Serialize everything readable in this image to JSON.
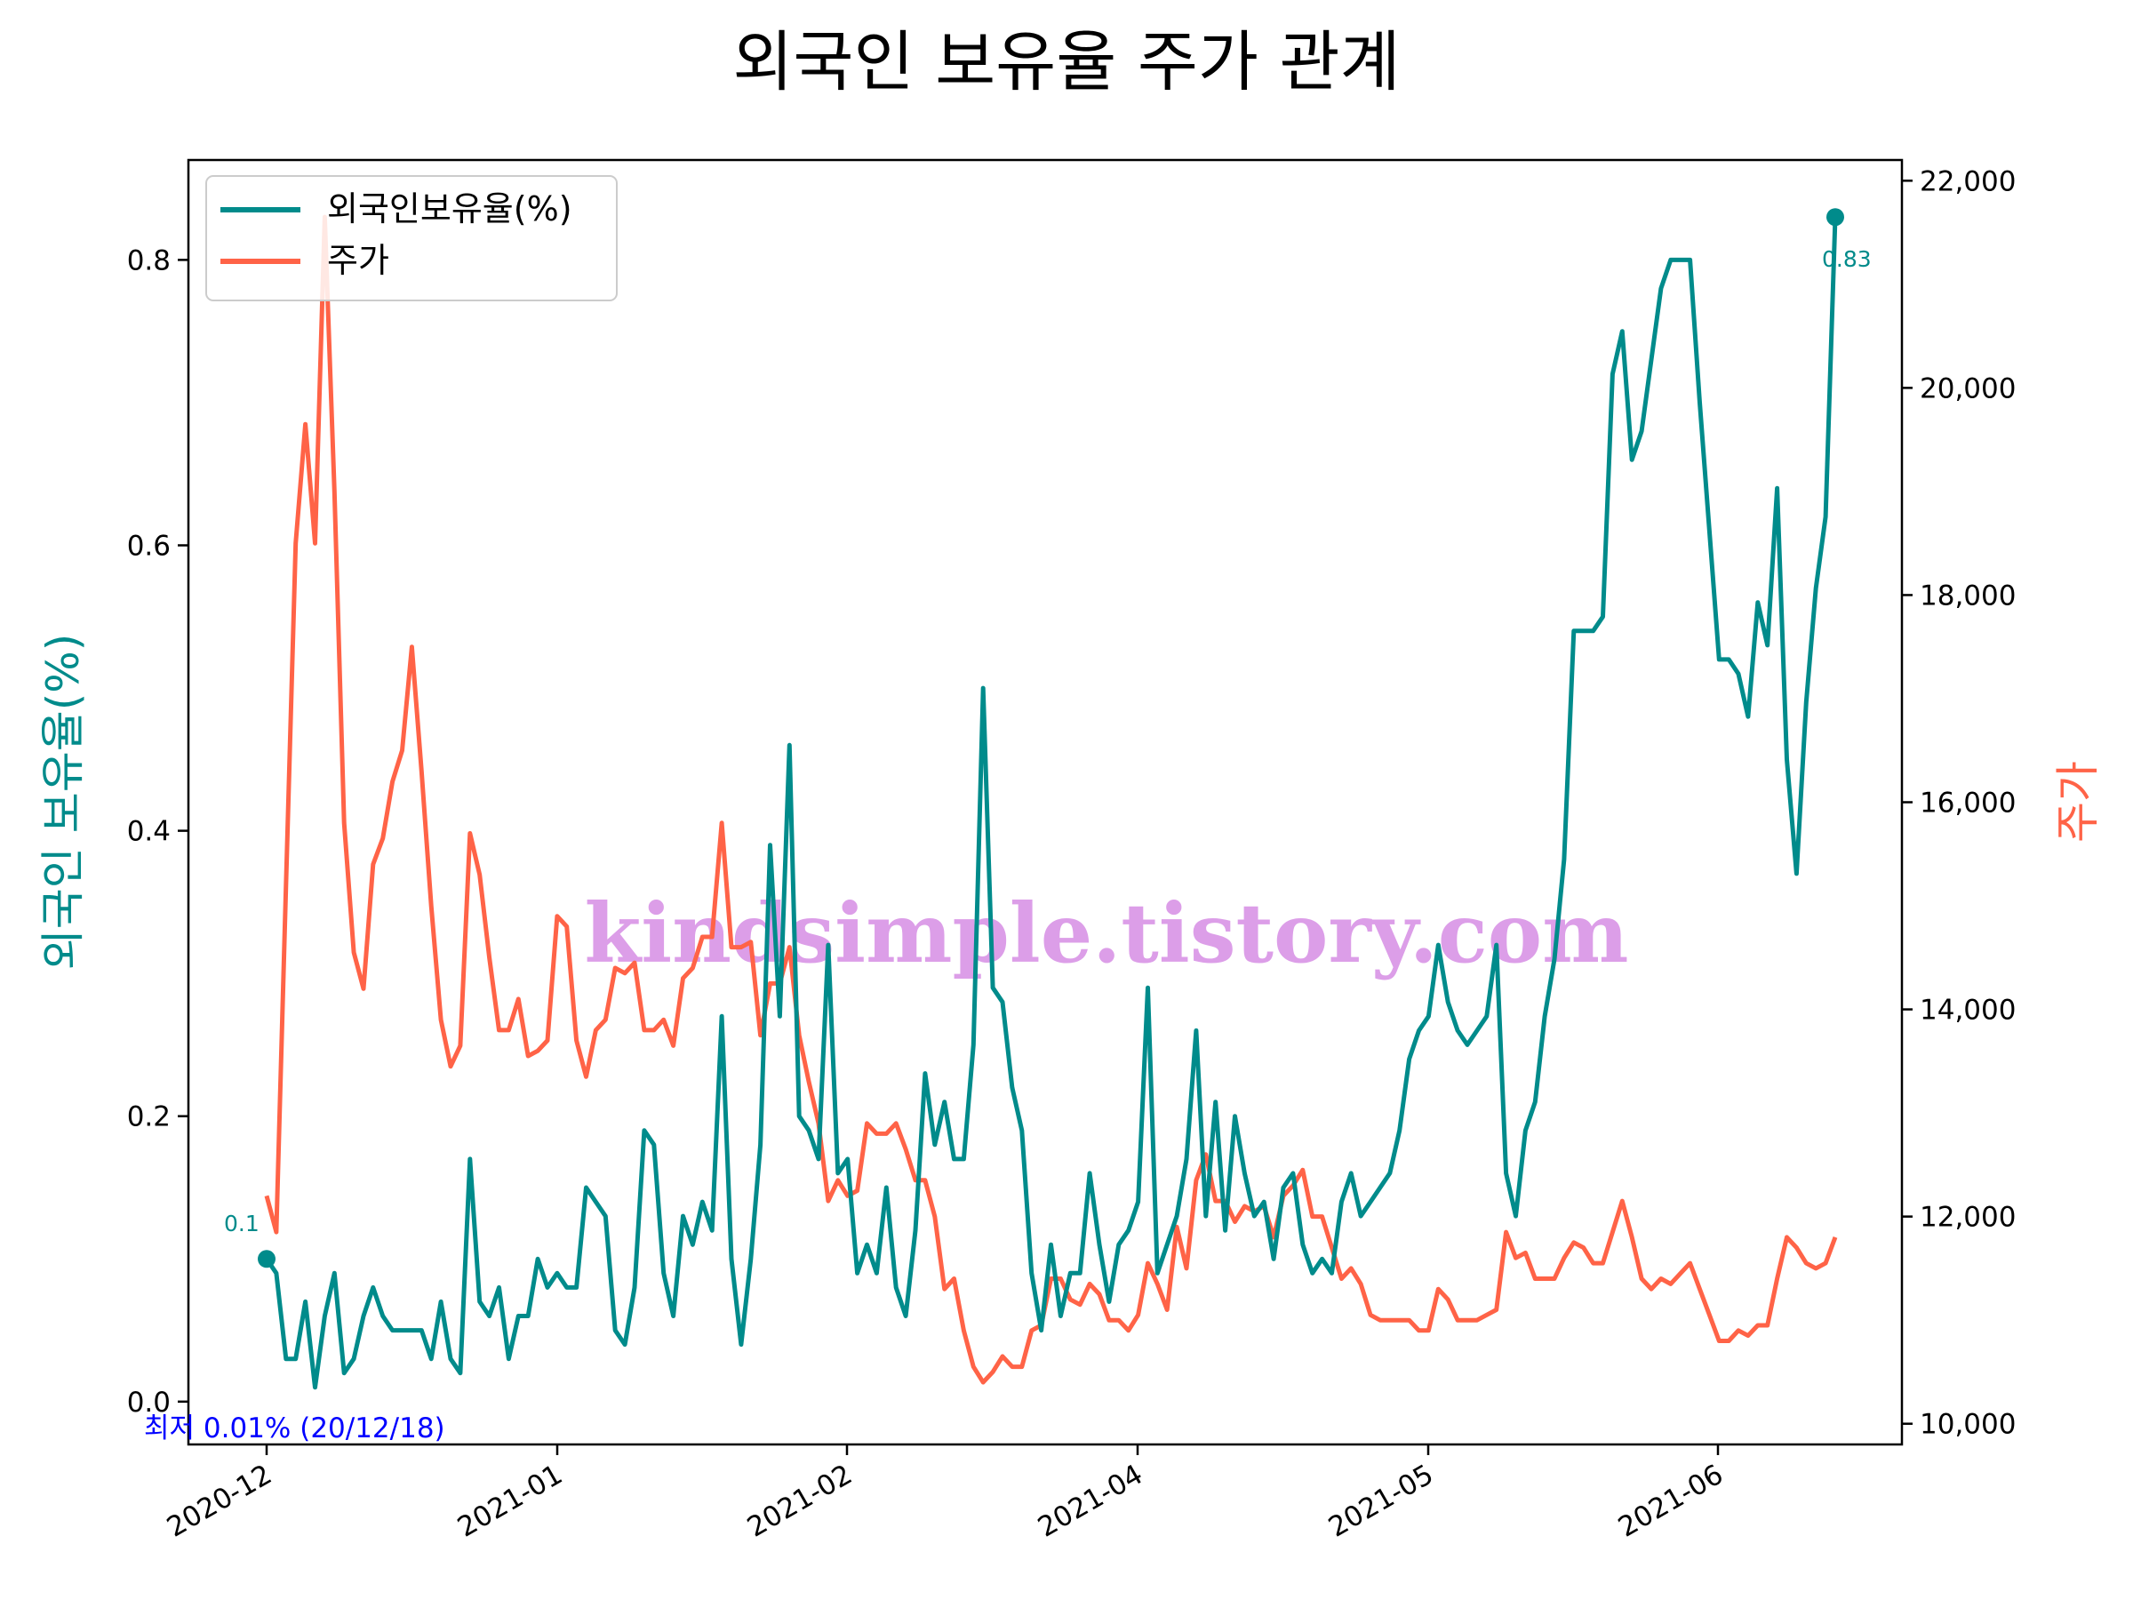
{
  "chart_data": {
    "type": "line",
    "title": "외국인 보유율 주가 관계",
    "ylabel_left": "외국인 보유율(%)",
    "ylabel_right": "주가",
    "x_tick_labels": [
      "2020-12",
      "2021-01",
      "2021-02",
      "2021-04",
      "2021-05",
      "2021-06"
    ],
    "y_left_ticks": [
      "0.0",
      "0.2",
      "0.4",
      "0.6",
      "0.8"
    ],
    "y_right_ticks": [
      "10,000",
      "12,000",
      "14,000",
      "16,000",
      "18,000",
      "20,000",
      "22,000"
    ],
    "ylim_left": [
      -0.03,
      0.87
    ],
    "ylim_right": [
      9800,
      22200
    ],
    "legend_position": "top-left",
    "grid": false,
    "watermark": "kindsimple.tistory.com",
    "annotations": {
      "start_value": "0.1",
      "end_value": "0.83",
      "min_label": "최저 0.01% (20/12/18)"
    },
    "colors": {
      "holding": "#008b8b",
      "price": "#ff6347",
      "min_label": "#0000ff",
      "watermark": "#dc9ee8"
    },
    "series": [
      {
        "name": "외국인보유율(%)",
        "axis": "left",
        "values": [
          0.1,
          0.09,
          0.03,
          0.03,
          0.07,
          0.01,
          0.06,
          0.09,
          0.02,
          0.03,
          0.06,
          0.08,
          0.06,
          0.05,
          0.05,
          0.05,
          0.05,
          0.03,
          0.07,
          0.03,
          0.02,
          0.17,
          0.07,
          0.06,
          0.08,
          0.03,
          0.06,
          0.06,
          0.1,
          0.08,
          0.09,
          0.08,
          0.08,
          0.15,
          0.14,
          0.13,
          0.05,
          0.04,
          0.08,
          0.19,
          0.18,
          0.09,
          0.06,
          0.13,
          0.11,
          0.14,
          0.12,
          0.27,
          0.1,
          0.04,
          0.1,
          0.18,
          0.39,
          0.27,
          0.46,
          0.2,
          0.19,
          0.17,
          0.32,
          0.16,
          0.17,
          0.09,
          0.11,
          0.09,
          0.15,
          0.08,
          0.06,
          0.12,
          0.23,
          0.18,
          0.21,
          0.17,
          0.17,
          0.25,
          0.5,
          0.29,
          0.28,
          0.22,
          0.19,
          0.09,
          0.05,
          0.11,
          0.06,
          0.09,
          0.09,
          0.16,
          0.11,
          0.07,
          0.11,
          0.12,
          0.14,
          0.29,
          0.09,
          0.11,
          0.13,
          0.17,
          0.26,
          0.13,
          0.21,
          0.12,
          0.2,
          0.16,
          0.13,
          0.14,
          0.1,
          0.15,
          0.16,
          0.11,
          0.09,
          0.1,
          0.09,
          0.14,
          0.16,
          0.13,
          0.14,
          0.15,
          0.16,
          0.19,
          0.24,
          0.26,
          0.27,
          0.32,
          0.28,
          0.26,
          0.25,
          0.26,
          0.27,
          0.32,
          0.16,
          0.13,
          0.19,
          0.21,
          0.27,
          0.31,
          0.38,
          0.54,
          0.54,
          0.54,
          0.55,
          0.72,
          0.75,
          0.66,
          0.68,
          0.73,
          0.78,
          0.8,
          0.8,
          0.8,
          0.7,
          0.61,
          0.52,
          0.52,
          0.51,
          0.48,
          0.56,
          0.53,
          0.64,
          0.45,
          0.37,
          0.49,
          0.57,
          0.62,
          0.83
        ]
      },
      {
        "name": "주가",
        "axis": "right",
        "values": [
          12200,
          11850,
          15200,
          18500,
          19650,
          18500,
          21650,
          19000,
          15800,
          14550,
          14200,
          15400,
          15650,
          16200,
          16500,
          17500,
          16300,
          15000,
          13900,
          13450,
          13650,
          15700,
          15300,
          14500,
          13800,
          13800,
          14100,
          13550,
          13600,
          13700,
          14900,
          14800,
          13700,
          13350,
          13800,
          13900,
          14400,
          14350,
          14450,
          13800,
          13800,
          13900,
          13650,
          14300,
          14400,
          14700,
          14700,
          15800,
          14600,
          14600,
          14650,
          13750,
          14250,
          14250,
          14600,
          13750,
          13300,
          12900,
          12150,
          12350,
          12200,
          12250,
          12900,
          12800,
          12800,
          12900,
          12650,
          12350,
          12350,
          12000,
          11300,
          11400,
          10900,
          10550,
          10400,
          10500,
          10650,
          10550,
          10550,
          10900,
          10950,
          11400,
          11400,
          11200,
          11150,
          11350,
          11250,
          11000,
          11000,
          10900,
          11050,
          11550,
          11350,
          11100,
          11900,
          11500,
          12350,
          12600,
          12150,
          12150,
          11950,
          12100,
          12050,
          12100,
          11800,
          12200,
          12300,
          12450,
          12000,
          12000,
          11700,
          11400,
          11500,
          11350,
          11050,
          11000,
          11000,
          11000,
          11000,
          10900,
          10900,
          11300,
          11200,
          11000,
          11000,
          11000,
          11050,
          11100,
          11850,
          11600,
          11650,
          11400,
          11400,
          11400,
          11600,
          11750,
          11700,
          11550,
          11550,
          11850,
          12150,
          11800,
          11400,
          11300,
          11400,
          11350,
          11450,
          11550,
          11300,
          11050,
          10800,
          10800,
          10900,
          10850,
          10950,
          10950,
          11400,
          11800,
          11700,
          11550,
          11500,
          11550,
          11800
        ]
      }
    ]
  }
}
